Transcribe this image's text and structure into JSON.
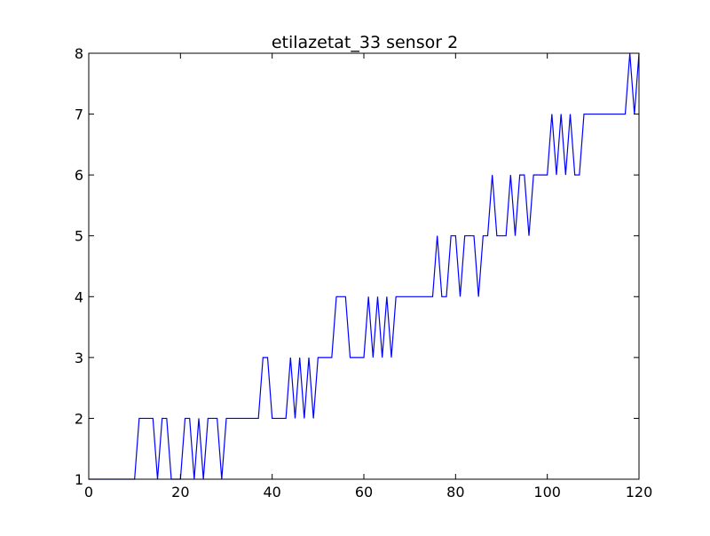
{
  "chart_data": {
    "type": "line",
    "title": "etilazetat_33 sensor 2",
    "xlabel": "",
    "ylabel": "",
    "xlim": [
      0,
      120
    ],
    "ylim": [
      1,
      8
    ],
    "xticks": [
      "0",
      "20",
      "40",
      "60",
      "80",
      "100",
      "120"
    ],
    "yticks": [
      "1",
      "2",
      "3",
      "4",
      "5",
      "6",
      "7",
      "8"
    ],
    "grid": false,
    "legend": "none",
    "series": [
      {
        "color": "#0000ff",
        "x": [
          0,
          1,
          2,
          3,
          4,
          5,
          6,
          7,
          8,
          9,
          10,
          11,
          12,
          13,
          14,
          15,
          16,
          17,
          18,
          19,
          20,
          21,
          22,
          23,
          24,
          25,
          26,
          27,
          28,
          29,
          30,
          31,
          32,
          33,
          34,
          35,
          36,
          37,
          38,
          39,
          40,
          41,
          42,
          43,
          44,
          45,
          46,
          47,
          48,
          49,
          50,
          51,
          52,
          53,
          54,
          55,
          56,
          57,
          58,
          59,
          60,
          61,
          62,
          63,
          64,
          65,
          66,
          67,
          68,
          69,
          70,
          71,
          72,
          73,
          74,
          75,
          76,
          77,
          78,
          79,
          80,
          81,
          82,
          83,
          84,
          85,
          86,
          87,
          88,
          89,
          90,
          91,
          92,
          93,
          94,
          95,
          96,
          97,
          98,
          99,
          100,
          101,
          102,
          103,
          104,
          105,
          106,
          107,
          108,
          109,
          110,
          111,
          112,
          113,
          114,
          115,
          116,
          117,
          118,
          119,
          120
        ],
        "y": [
          1,
          1,
          1,
          1,
          1,
          1,
          1,
          1,
          1,
          1,
          1,
          2,
          2,
          2,
          2,
          1,
          2,
          2,
          1,
          1,
          1,
          2,
          2,
          1,
          2,
          1,
          2,
          2,
          2,
          1,
          2,
          2,
          2,
          2,
          2,
          2,
          2,
          2,
          3,
          3,
          2,
          2,
          2,
          2,
          3,
          2,
          3,
          2,
          3,
          2,
          3,
          3,
          3,
          3,
          4,
          4,
          4,
          3,
          3,
          3,
          3,
          4,
          3,
          4,
          3,
          4,
          3,
          4,
          4,
          4,
          4,
          4,
          4,
          4,
          4,
          4,
          5,
          4,
          4,
          5,
          5,
          4,
          5,
          5,
          5,
          4,
          5,
          5,
          6,
          5,
          5,
          5,
          6,
          5,
          6,
          6,
          5,
          6,
          6,
          6,
          6,
          7,
          6,
          7,
          6,
          7,
          6,
          6,
          7,
          7,
          7,
          7,
          7,
          7,
          7,
          7,
          7,
          7,
          8,
          7,
          8
        ]
      }
    ]
  }
}
